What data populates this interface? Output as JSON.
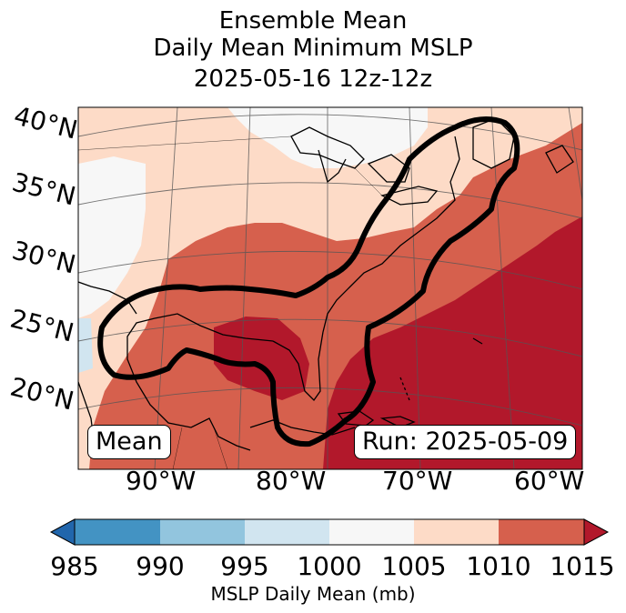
{
  "title": {
    "line1": "Ensemble Mean",
    "line2": "Daily Mean Minimum MSLP",
    "line3": "2025-05-16 12z-12z"
  },
  "map": {
    "lat_labels": [
      "40°N",
      "35°N",
      "30°N",
      "25°N",
      "20°N"
    ],
    "lon_labels": [
      "90°W",
      "80°W",
      "70°W",
      "60°W"
    ],
    "mean_label": "Mean",
    "run_label": "Run: 2025-05-09"
  },
  "colorbar": {
    "ticks": [
      "985",
      "990",
      "995",
      "1000",
      "1005",
      "1010",
      "1015"
    ],
    "label": "MSLP Daily Mean (mb)",
    "colors": {
      "below": "#2166ac",
      "985_990": "#4393c3",
      "990_995": "#92c5de",
      "995_1000": "#d1e5f0",
      "1000_1005": "#f7f7f7",
      "1005_1010": "#fddbc7",
      "1010_1015": "#d6604d",
      "above": "#b2182b"
    }
  }
}
